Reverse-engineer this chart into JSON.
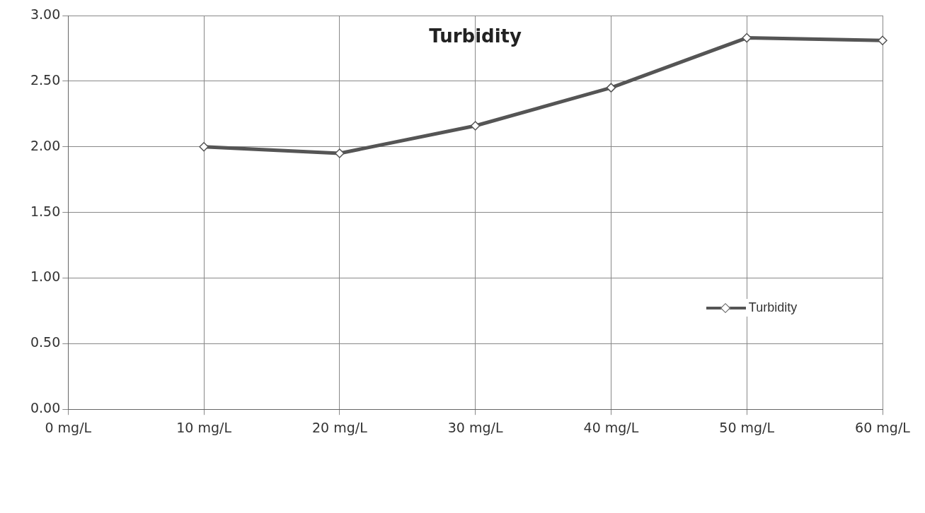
{
  "chart_data": {
    "type": "line",
    "title": "Turbidity",
    "categories": [
      "0 mg/L",
      "10 mg/L",
      "20 mg/L",
      "30 mg/L",
      "40 mg/L",
      "50 mg/L",
      "60 mg/L"
    ],
    "series": [
      {
        "name": "Turbidity",
        "color": "#555555",
        "values": [
          null,
          2.0,
          1.95,
          2.16,
          2.45,
          2.83,
          2.81
        ]
      }
    ],
    "ylim": [
      0,
      3
    ],
    "yticks": [
      {
        "value": 0,
        "label": "0.00"
      },
      {
        "value": 0.5,
        "label": "0.50"
      },
      {
        "value": 1,
        "label": "1.00"
      },
      {
        "value": 1.5,
        "label": "1.50"
      },
      {
        "value": 2,
        "label": "2.00"
      },
      {
        "value": 2.5,
        "label": "2.50"
      },
      {
        "value": 3,
        "label": "3.00"
      }
    ],
    "grid": true,
    "legend": "right",
    "marker": "diamond",
    "line_style": "solid"
  }
}
